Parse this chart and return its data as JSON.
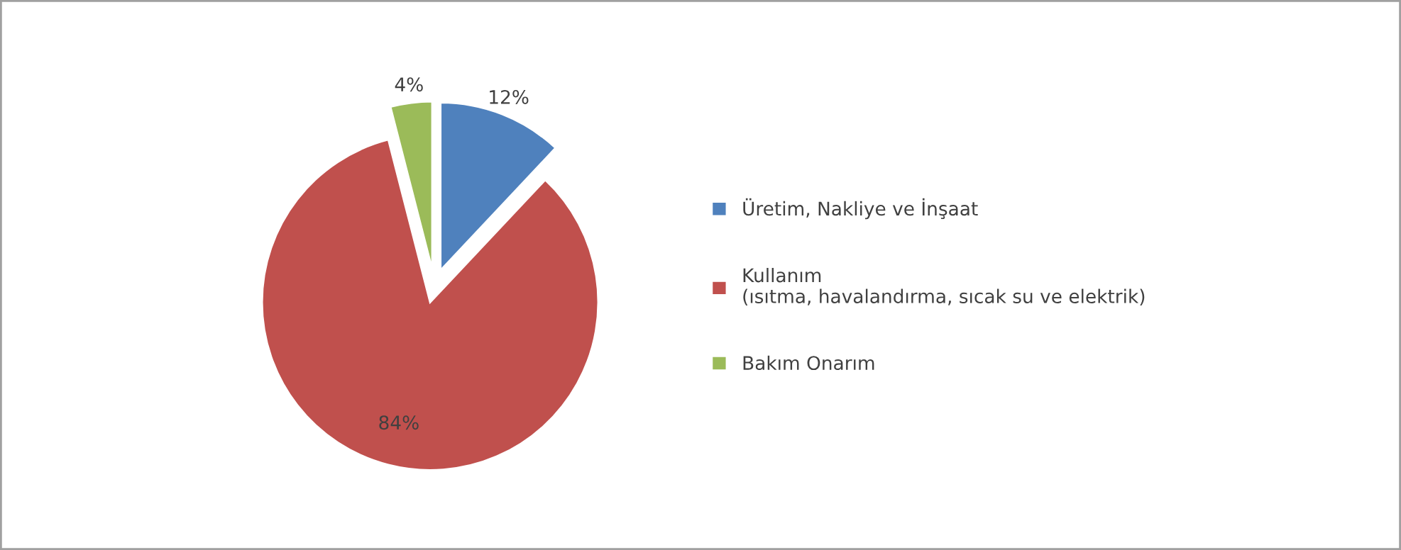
{
  "chart_data": {
    "type": "pie",
    "categories": [
      "Üretim, Nakliye ve İnşaat",
      "Kullanım\n(ısıtma, havalandırma, sıcak su ve elektrik)",
      "Bakım Onarım"
    ],
    "values": [
      12,
      84,
      4
    ],
    "colors": [
      "#4f81bd",
      "#c0504d",
      "#9bbb59"
    ],
    "value_labels": [
      "12%",
      "84%",
      "4%"
    ],
    "legend": "right"
  }
}
